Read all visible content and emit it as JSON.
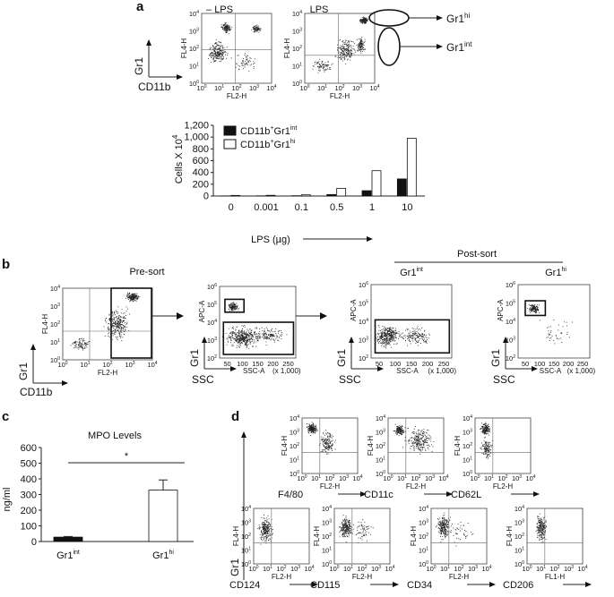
{
  "panels": {
    "a": {
      "label": "a",
      "flow": {
        "titles": [
          "– LPS",
          "LPS"
        ],
        "y_channel": "FL4-H",
        "x_channel": "FL2-H",
        "log_ticks": [
          "10",
          "1",
          "2",
          "3",
          "4"
        ],
        "axis_key_y": "Gr1",
        "axis_key_x": "CD11b",
        "gates": [
          "Gr1",
          "Gr1"
        ],
        "gate_sup": [
          "hi",
          "int"
        ]
      },
      "chart_data": {
        "type": "bar",
        "categories": [
          "0",
          "0.001",
          "0.1",
          "0.5",
          "1",
          "10"
        ],
        "series": [
          {
            "name": "CD11b+Gr1int",
            "values": [
              2,
              3,
              5,
              25,
              90,
              290
            ],
            "color": "#111111"
          },
          {
            "name": "CD11b+Gr1hi",
            "values": [
              10,
              12,
              20,
              130,
              430,
              980
            ],
            "color": "#ffffff"
          }
        ],
        "legend": [
          "CD11b",
          "Gr1",
          "int",
          "hi"
        ],
        "ylabel": "Cells X 10",
        "ylabel_sup": "4",
        "xlabel": "LPS (µg)",
        "yticks": [
          "0",
          "200",
          "400",
          "600",
          "800",
          "1,000",
          "1,200"
        ],
        "ylim": [
          0,
          1200
        ]
      }
    },
    "b": {
      "label": "b",
      "pre_sort": "Pre-sort",
      "post_sort": "Post-sort",
      "sub_titles": [
        "Gr1",
        "Gr1"
      ],
      "sub_sups": [
        "int",
        "hi"
      ],
      "flow_y": "FL4-H",
      "flow_x": "FL2-H",
      "ssc_y": "APC-A",
      "ssc_x": "SSC-A",
      "ssc_unit": "(x 1,000)",
      "ssc_ticks": [
        "50",
        "100",
        "150",
        "200",
        "250"
      ],
      "axis_y": "Gr1",
      "axis_x1": "CD11b",
      "axis_x2": "SSC"
    },
    "c": {
      "label": "c",
      "chart_data": {
        "type": "bar",
        "title": "MPO Levels",
        "categories": [
          "Gr1int",
          "Gr1hi"
        ],
        "cat_base": [
          "Gr1",
          "Gr1"
        ],
        "cat_sup": [
          "int",
          "hi"
        ],
        "values": [
          28,
          328
        ],
        "errors": [
          4,
          65
        ],
        "ylabel": "ng/ml",
        "yticks": [
          "0",
          "100",
          "200",
          "300",
          "400",
          "500",
          "600"
        ],
        "ylim": [
          0,
          600
        ],
        "significance": "*"
      }
    },
    "d": {
      "label": "d",
      "axis_y": "Gr1",
      "row1": [
        {
          "marker": "F4/80",
          "xch": "FL2-H"
        },
        {
          "marker": "CD11c",
          "xch": "FL2-H"
        },
        {
          "marker": "CD62L",
          "xch": "FL2-H"
        }
      ],
      "row2": [
        {
          "marker": "CD124",
          "xch": "FL2-H"
        },
        {
          "marker": "CD115",
          "xch": "FL2-H"
        },
        {
          "marker": "CD34",
          "xch": "FL2-H"
        },
        {
          "marker": "CD206",
          "xch": "FL1-H"
        }
      ],
      "ych": "FL4-H"
    }
  }
}
